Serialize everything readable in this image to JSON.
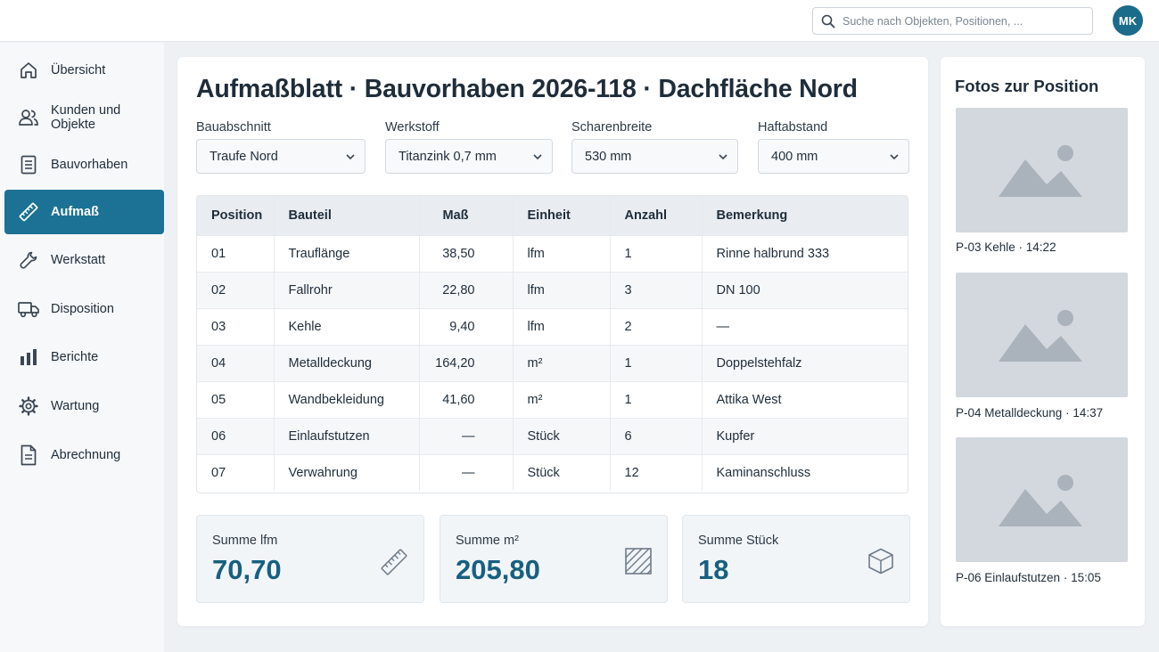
{
  "header": {
    "search_placeholder": "Suche nach Objekten, Positionen, ...",
    "avatar_initials": "MK"
  },
  "sidebar": {
    "items": [
      {
        "label": "Übersicht",
        "icon": "home-icon",
        "active": false
      },
      {
        "label": "Kunden und Objekte",
        "icon": "users-icon",
        "active": false
      },
      {
        "label": "Bauvorhaben",
        "icon": "document-icon",
        "active": false
      },
      {
        "label": "Aufmaß",
        "icon": "ruler-icon",
        "active": true
      },
      {
        "label": "Werkstatt",
        "icon": "wrench-icon",
        "active": false
      },
      {
        "label": "Disposition",
        "icon": "truck-icon",
        "active": false
      },
      {
        "label": "Berichte",
        "icon": "bar-chart-icon",
        "active": false
      },
      {
        "label": "Wartung",
        "icon": "gear-icon",
        "active": false
      },
      {
        "label": "Abrechnung",
        "icon": "invoice-icon",
        "active": false
      }
    ]
  },
  "main": {
    "title": "Aufmaßblatt · Bauvorhaben 2026-118 · Dachfläche Nord",
    "filters": [
      {
        "label": "Bauabschnitt",
        "value": "Traufe Nord"
      },
      {
        "label": "Werkstoff",
        "value": "Titanzink 0,7 mm"
      },
      {
        "label": "Scharenbreite",
        "value": "530 mm"
      },
      {
        "label": "Haftabstand",
        "value": "400 mm"
      }
    ],
    "table": {
      "headers": [
        "Position",
        "Bauteil",
        "Maß",
        "Einheit",
        "Anzahl",
        "Bemerkung"
      ],
      "rows": [
        [
          "01",
          "Trauflänge",
          "38,50",
          "lfm",
          "1",
          "Rinne halbrund 333"
        ],
        [
          "02",
          "Fallrohr",
          "22,80",
          "lfm",
          "3",
          "DN 100"
        ],
        [
          "03",
          "Kehle",
          "9,40",
          "lfm",
          "2",
          "—"
        ],
        [
          "04",
          "Metalldeckung",
          "164,20",
          "m²",
          "1",
          "Doppelstehfalz"
        ],
        [
          "05",
          "Wandbekleidung",
          "41,60",
          "m²",
          "1",
          "Attika West"
        ],
        [
          "06",
          "Einlaufstutzen",
          "—",
          "Stück",
          "6",
          "Kupfer"
        ],
        [
          "07",
          "Verwahrung",
          "—",
          "Stück",
          "12",
          "Kaminanschluss"
        ]
      ]
    },
    "summary": [
      {
        "label": "Summe lfm",
        "value": "70,70",
        "icon": "ruler-icon"
      },
      {
        "label": "Summe m²",
        "value": "205,80",
        "icon": "hatched-square-icon"
      },
      {
        "label": "Summe Stück",
        "value": "18",
        "icon": "box-icon"
      }
    ]
  },
  "photos": {
    "title": "Fotos zur Position",
    "items": [
      {
        "caption": "P-03 Kehle · 14:22"
      },
      {
        "caption": "P-04 Metalldeckung · 14:37"
      },
      {
        "caption": "P-06 Einlaufstutzen · 15:05"
      }
    ]
  },
  "colors": {
    "accent": "#1b7294",
    "value": "#17607f",
    "background": "#eef1f4"
  }
}
